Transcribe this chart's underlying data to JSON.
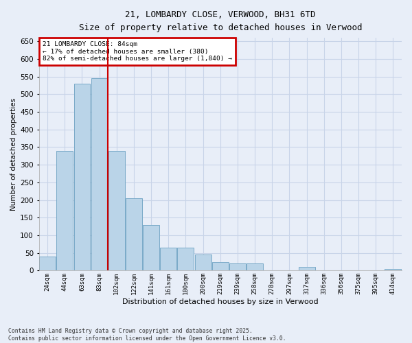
{
  "title1": "21, LOMBARDY CLOSE, VERWOOD, BH31 6TD",
  "title2": "Size of property relative to detached houses in Verwood",
  "xlabel": "Distribution of detached houses by size in Verwood",
  "ylabel": "Number of detached properties",
  "footer": "Contains HM Land Registry data © Crown copyright and database right 2025.\nContains public sector information licensed under the Open Government Licence v3.0.",
  "annotation_title": "21 LOMBARDY CLOSE: 84sqm",
  "annotation_line1": "← 17% of detached houses are smaller (380)",
  "annotation_line2": "82% of semi-detached houses are larger (1,840) →",
  "bar_categories": [
    "24sqm",
    "44sqm",
    "63sqm",
    "83sqm",
    "102sqm",
    "122sqm",
    "141sqm",
    "161sqm",
    "180sqm",
    "200sqm",
    "219sqm",
    "239sqm",
    "258sqm",
    "278sqm",
    "297sqm",
    "317sqm",
    "336sqm",
    "356sqm",
    "375sqm",
    "395sqm",
    "414sqm"
  ],
  "bar_values": [
    40,
    340,
    530,
    545,
    340,
    205,
    130,
    65,
    65,
    45,
    25,
    20,
    20,
    0,
    0,
    10,
    0,
    0,
    0,
    0,
    5
  ],
  "bar_color": "#bad4e8",
  "bar_edge_color": "#7aaac8",
  "vline_color": "#cc0000",
  "vline_x_index": 3.5,
  "annotation_box_color": "#cc0000",
  "background_color": "#e8eef8",
  "grid_color": "#c8d4e8",
  "ylim": [
    0,
    660
  ],
  "yticks": [
    0,
    50,
    100,
    150,
    200,
    250,
    300,
    350,
    400,
    450,
    500,
    550,
    600,
    650
  ]
}
